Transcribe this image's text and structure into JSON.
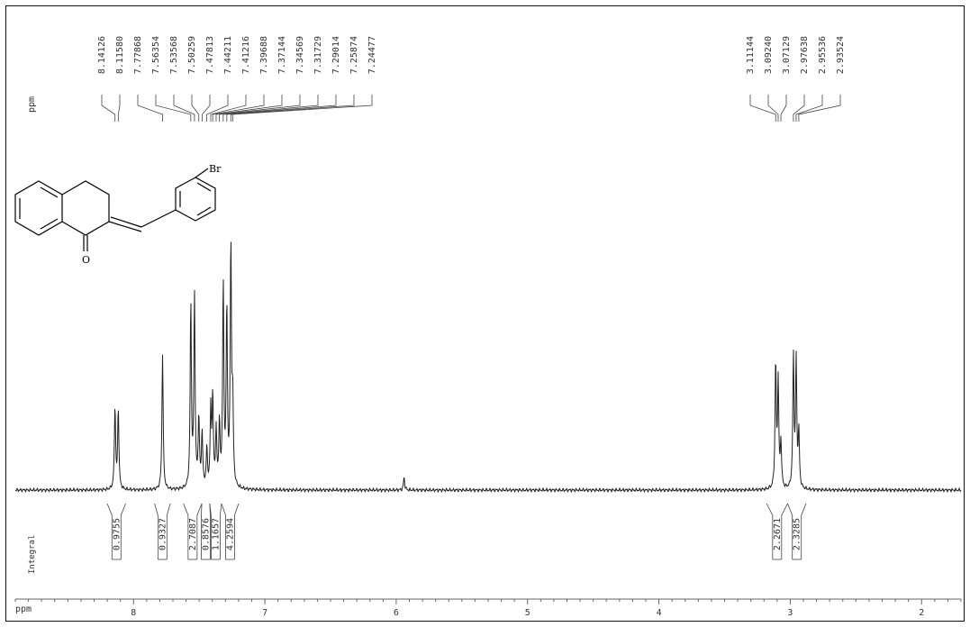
{
  "page": {
    "ppm_label_top": "ppm",
    "ppm_label_bottom": "ppm",
    "integral_label": "Integral"
  },
  "molecule": {
    "substituent_label": "Br",
    "carbonyl_label": "O"
  },
  "chart_data": {
    "type": "line",
    "title": "",
    "xlabel": "ppm",
    "ylabel": "",
    "xlim": [
      8.9,
      1.7
    ],
    "x_reversed": true,
    "x_ticks": [
      8,
      7,
      6,
      5,
      4,
      3,
      2
    ],
    "x_tick_labels": [
      "8",
      "7",
      "6",
      "5",
      "4",
      "3",
      "2"
    ],
    "peak_labels_aromatic": [
      "8.14126",
      "8.11580",
      "7.77868",
      "7.56354",
      "7.53568",
      "7.50259",
      "7.47813",
      "7.44211",
      "7.41216",
      "7.39688",
      "7.37144",
      "7.34569",
      "7.31729",
      "7.29014",
      "7.25874",
      "7.24477"
    ],
    "peak_labels_aliphatic": [
      "3.11144",
      "3.09240",
      "3.07129",
      "2.97638",
      "2.95536",
      "2.93524"
    ],
    "peaks": [
      {
        "ppm": 8.141,
        "height": 0.33
      },
      {
        "ppm": 8.116,
        "height": 0.32
      },
      {
        "ppm": 7.779,
        "height": 0.54
      },
      {
        "ppm": 7.564,
        "height": 0.73
      },
      {
        "ppm": 7.536,
        "height": 0.76
      },
      {
        "ppm": 7.503,
        "height": 0.28
      },
      {
        "ppm": 7.478,
        "height": 0.22
      },
      {
        "ppm": 7.442,
        "height": 0.15
      },
      {
        "ppm": 7.412,
        "height": 0.3
      },
      {
        "ppm": 7.397,
        "height": 0.35
      },
      {
        "ppm": 7.371,
        "height": 0.22
      },
      {
        "ppm": 7.346,
        "height": 0.25
      },
      {
        "ppm": 7.317,
        "height": 0.8
      },
      {
        "ppm": 7.29,
        "height": 0.7
      },
      {
        "ppm": 7.259,
        "height": 0.95
      },
      {
        "ppm": 7.245,
        "height": 0.32
      },
      {
        "ppm": 5.94,
        "height": 0.05
      },
      {
        "ppm": 3.111,
        "height": 0.5
      },
      {
        "ppm": 3.092,
        "height": 0.42
      },
      {
        "ppm": 3.071,
        "height": 0.18
      },
      {
        "ppm": 2.976,
        "height": 0.52
      },
      {
        "ppm": 2.955,
        "height": 0.5
      },
      {
        "ppm": 2.935,
        "height": 0.22
      }
    ],
    "integrals": [
      {
        "label": "0.9755",
        "from": 8.2,
        "to": 8.06
      },
      {
        "label": "0.9327",
        "from": 7.84,
        "to": 7.72
      },
      {
        "label": "2.7087",
        "from": 7.62,
        "to": 7.48
      },
      {
        "label": "0.8576",
        "from": 7.48,
        "to": 7.42
      },
      {
        "label": "1.1657",
        "from": 7.42,
        "to": 7.33
      },
      {
        "label": "4.2594",
        "from": 7.33,
        "to": 7.2
      },
      {
        "label": "2.2671",
        "from": 3.18,
        "to": 3.02
      },
      {
        "label": "2.3285",
        "from": 3.02,
        "to": 2.88
      }
    ]
  }
}
